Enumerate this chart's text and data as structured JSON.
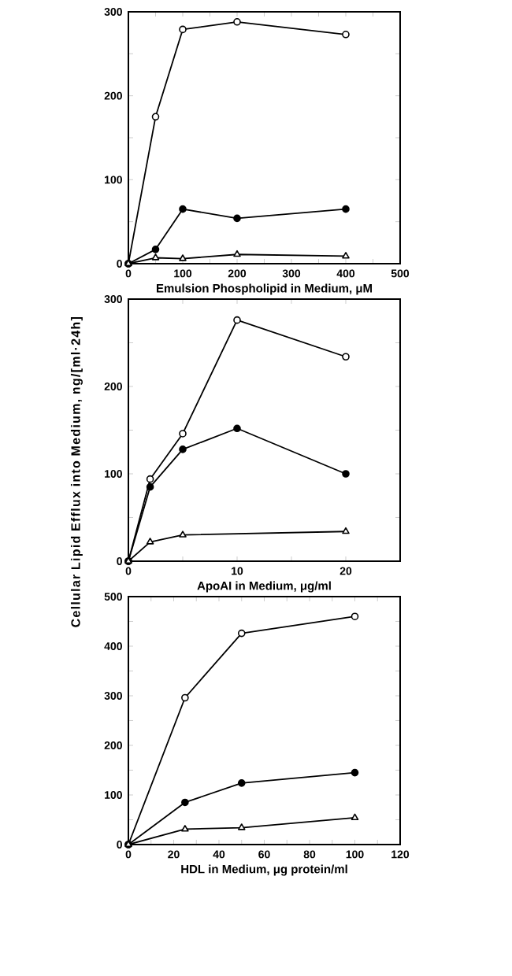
{
  "chart_data": [
    {
      "type": "line",
      "xlabel": "Emulsion Phospholipid in Medium, μM",
      "line_style": "solid",
      "xlim": [
        0,
        500
      ],
      "ylim": [
        0,
        300
      ],
      "xticks": [
        0,
        {
          "value": 50,
          "label": null
        },
        100,
        {
          "value": 150,
          "label": null
        },
        200,
        {
          "value": 250,
          "label": null
        },
        300,
        {
          "value": 350,
          "label": null
        },
        400,
        {
          "value": 450,
          "label": null
        },
        500
      ],
      "yticks": [
        0,
        {
          "value": 50,
          "label": null
        },
        100,
        {
          "value": 150,
          "label": null
        },
        200,
        {
          "value": 250,
          "label": null
        },
        300
      ],
      "x": [
        0,
        50,
        100,
        200,
        400
      ],
      "series": [
        {
          "color": "#000000",
          "marker": "circle",
          "values": [
            0,
            175,
            279,
            288,
            273
          ]
        },
        {
          "color": "#000000",
          "marker": "circle",
          "values": [
            0,
            17,
            65,
            54,
            65
          ]
        },
        {
          "color": "#000000",
          "marker": "triangle",
          "values": [
            0,
            7,
            6,
            11,
            9
          ]
        }
      ]
    },
    {
      "type": "line",
      "xlabel": "ApoAI in Medium, μg/ml",
      "ylabel": "Cellular Lipid Efflux into Medium, ng/[ml·24h]",
      "line_style": "solid",
      "xlim": [
        0,
        25
      ],
      "ylim": [
        0,
        300
      ],
      "xticks": [
        0,
        {
          "value": 5,
          "label": null
        },
        10,
        {
          "value": 15,
          "label": null
        },
        20,
        {
          "value": 25,
          "label": null
        }
      ],
      "yticks": [
        0,
        {
          "value": 50,
          "label": null
        },
        100,
        {
          "value": 150,
          "label": null
        },
        200,
        {
          "value": 250,
          "label": null
        },
        300
      ],
      "x": [
        0,
        2,
        5,
        10,
        20
      ],
      "series": [
        {
          "color": "#000000",
          "marker": "circle",
          "values": [
            0,
            94,
            146,
            276,
            234
          ]
        },
        {
          "color": "#000000",
          "marker": "circle",
          "values": [
            0,
            85,
            128,
            152,
            100
          ]
        },
        {
          "color": "#000000",
          "marker": "triangle",
          "x": [
            0,
            2,
            5,
            20
          ],
          "values": [
            0,
            22,
            30,
            34
          ]
        }
      ]
    },
    {
      "type": "line",
      "xlabel": "HDL in Medium, μg protein/ml",
      "line_style": "solid",
      "xlim": [
        0,
        120
      ],
      "ylim": [
        0,
        500
      ],
      "xticks": [
        0,
        {
          "value": 10,
          "label": null
        },
        20,
        {
          "value": 30,
          "label": null
        },
        40,
        {
          "value": 50,
          "label": null
        },
        60,
        {
          "value": 70,
          "label": null
        },
        80,
        {
          "value": 90,
          "label": null
        },
        100,
        {
          "value": 110,
          "label": null
        },
        120
      ],
      "yticks": [
        0,
        {
          "value": 50,
          "label": null
        },
        100,
        {
          "value": 150,
          "label": null
        },
        200,
        {
          "value": 250,
          "label": null
        },
        300,
        {
          "value": 350,
          "label": null
        },
        400,
        {
          "value": 450,
          "label": null
        },
        500
      ],
      "x": [
        0,
        25,
        50,
        100
      ],
      "series": [
        {
          "color": "#000000",
          "marker": "circle",
          "values": [
            0,
            296,
            426,
            460
          ]
        },
        {
          "color": "#000000",
          "marker": "circle",
          "values": [
            0,
            85,
            124,
            145
          ]
        },
        {
          "color": "#000000",
          "marker": "triangle",
          "values": [
            0,
            31,
            34,
            54
          ]
        }
      ]
    }
  ]
}
